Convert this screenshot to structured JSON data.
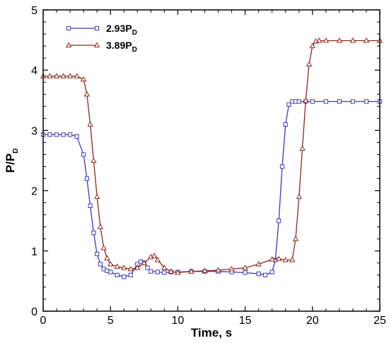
{
  "chart_data": {
    "type": "line",
    "xlabel": "Time, s",
    "ylabel": {
      "main": "P/P",
      "sub": "D"
    },
    "xlim": [
      0,
      25
    ],
    "ylim": [
      0,
      5
    ],
    "xticks": [
      "0",
      "5",
      "10",
      "15",
      "20",
      "25"
    ],
    "yticks": [
      "0",
      "1",
      "2",
      "3",
      "4",
      "5"
    ],
    "grid": false,
    "legend_position": "top-left",
    "series": [
      {
        "name": "2.93P",
        "name_sub": "D",
        "color": "#3a3ab8",
        "marker": "square",
        "x": [
          0,
          0.5,
          1,
          1.5,
          2,
          2.5,
          3,
          3.25,
          3.5,
          3.75,
          4,
          4.25,
          4.5,
          4.75,
          5,
          5.5,
          6,
          6.5,
          7,
          7.25,
          7.5,
          7.75,
          8,
          8.5,
          9,
          9.5,
          10,
          11,
          12,
          13,
          14,
          15,
          16,
          16.5,
          17,
          17.25,
          17.5,
          17.75,
          18,
          18.25,
          18.5,
          18.75,
          19,
          19.5,
          20,
          21,
          22,
          23,
          24,
          25
        ],
        "y": [
          2.93,
          2.93,
          2.93,
          2.93,
          2.93,
          2.9,
          2.6,
          2.2,
          1.75,
          1.3,
          0.95,
          0.78,
          0.7,
          0.67,
          0.65,
          0.6,
          0.57,
          0.6,
          0.78,
          0.82,
          0.8,
          0.72,
          0.66,
          0.65,
          0.64,
          0.65,
          0.65,
          0.66,
          0.66,
          0.66,
          0.65,
          0.64,
          0.62,
          0.6,
          0.65,
          0.85,
          1.5,
          2.4,
          3.1,
          3.43,
          3.48,
          3.48,
          3.48,
          3.48,
          3.48,
          3.48,
          3.48,
          3.48,
          3.48,
          3.48
        ]
      },
      {
        "name": "3.89P",
        "name_sub": "D",
        "color": "#8a2a1e",
        "marker": "triangle",
        "x": [
          0,
          0.5,
          1,
          1.5,
          2,
          2.5,
          3,
          3.25,
          3.5,
          3.75,
          4,
          4.25,
          4.5,
          4.75,
          5,
          5.5,
          6,
          6.5,
          7,
          7.5,
          8,
          8.25,
          8.5,
          9,
          9.5,
          10,
          11,
          12,
          13,
          14,
          15,
          16,
          17,
          17.5,
          18,
          18.5,
          18.75,
          19,
          19.25,
          19.5,
          19.75,
          20,
          20.25,
          20.5,
          21,
          22,
          23,
          24,
          25
        ],
        "y": [
          3.9,
          3.9,
          3.9,
          3.9,
          3.9,
          3.9,
          3.85,
          3.6,
          3.1,
          2.5,
          1.9,
          1.4,
          1.05,
          0.88,
          0.78,
          0.74,
          0.72,
          0.7,
          0.72,
          0.8,
          0.9,
          0.92,
          0.85,
          0.72,
          0.66,
          0.64,
          0.66,
          0.67,
          0.68,
          0.7,
          0.72,
          0.78,
          0.86,
          0.87,
          0.85,
          0.85,
          1.2,
          1.9,
          2.7,
          3.5,
          4.1,
          4.4,
          4.48,
          4.49,
          4.49,
          4.49,
          4.49,
          4.49,
          4.49
        ]
      }
    ]
  }
}
